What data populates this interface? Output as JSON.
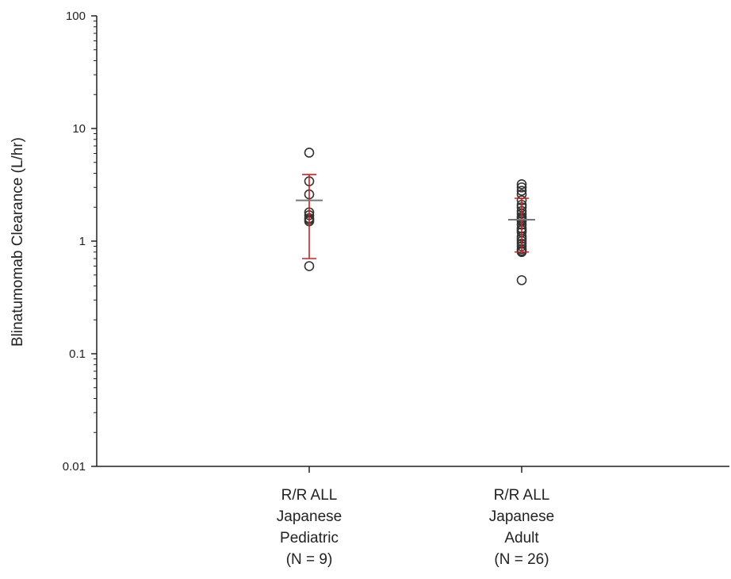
{
  "chart_data": {
    "type": "scatter",
    "ylabel": "Blinatumomab Clearance (L/hr)",
    "yscale": "log",
    "ylim": [
      0.01,
      100
    ],
    "yticks": [
      0.01,
      0.1,
      1,
      10,
      100
    ],
    "ytick_labels": [
      "0.01",
      "0.1",
      "1",
      "10",
      "100"
    ],
    "grid": false,
    "legend": "none",
    "marker_color": "#333333",
    "error_bar_color": "#cc2020",
    "mean_line_color": "#777777",
    "categories": [
      {
        "label_lines": [
          "R/R ALL",
          "Japanese",
          "Pediatric",
          "(N = 9)"
        ],
        "points": [
          6.1,
          3.4,
          2.6,
          1.8,
          1.7,
          1.6,
          1.55,
          1.5,
          0.6
        ],
        "mean": 2.3,
        "error_low": 0.7,
        "error_high": 3.9
      },
      {
        "label_lines": [
          "R/R ALL",
          "Japanese",
          "Adult",
          "(N = 26)"
        ],
        "points": [
          3.2,
          3.0,
          2.8,
          2.6,
          2.3,
          2.1,
          2.0,
          1.85,
          1.75,
          1.65,
          1.6,
          1.55,
          1.5,
          1.4,
          1.3,
          1.25,
          1.2,
          1.1,
          1.05,
          1.0,
          0.95,
          0.9,
          0.85,
          0.82,
          0.8,
          0.45
        ],
        "mean": 1.55,
        "error_low": 0.8,
        "error_high": 2.4
      }
    ]
  }
}
